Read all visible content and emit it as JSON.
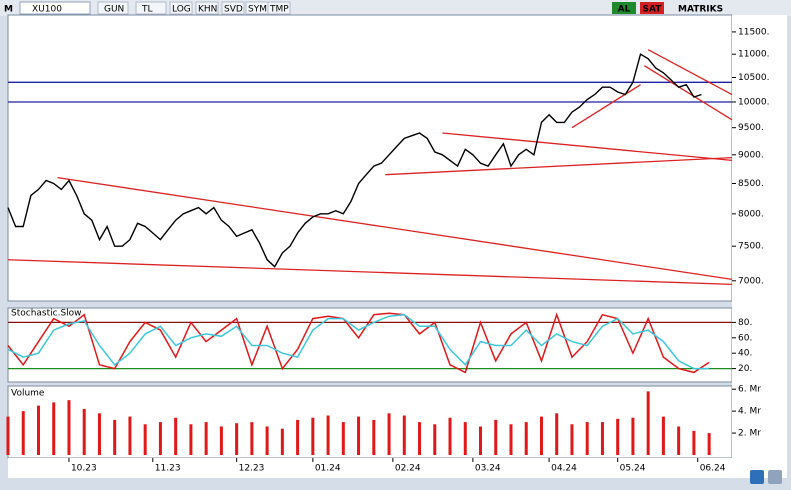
{
  "toolbar": {
    "mode": "M",
    "symbol": "XU100",
    "buttons": [
      "GUN",
      "TL",
      "LOG",
      "KHN",
      "SVD",
      "SYM",
      "TMP"
    ],
    "actions": [
      "AL",
      "SAT"
    ],
    "brand": "MATRIKS"
  },
  "chart_data": [
    {
      "type": "line",
      "log_y": true,
      "color": "#000000",
      "xlim": [
        0,
        190
      ],
      "ylim": [
        6900,
        11800
      ],
      "yticks": [
        {
          "value": 7000,
          "label": "7000."
        },
        {
          "value": 7500,
          "label": "7500."
        },
        {
          "value": 8000,
          "label": "8000."
        },
        {
          "value": 8500,
          "label": "8500."
        },
        {
          "value": 9000,
          "label": "9000."
        },
        {
          "value": 9500,
          "label": "9500."
        },
        {
          "value": 10000,
          "label": "10000."
        },
        {
          "value": 10500,
          "label": "10500."
        },
        {
          "value": 11000,
          "label": "11000."
        },
        {
          "value": 11500,
          "label": "11500."
        }
      ],
      "x": [
        0,
        2,
        4,
        6,
        8,
        10,
        12,
        14,
        16,
        18,
        20,
        22,
        24,
        26,
        28,
        30,
        32,
        34,
        36,
        38,
        40,
        42,
        44,
        46,
        48,
        50,
        52,
        54,
        56,
        58,
        60,
        62,
        64,
        66,
        68,
        70,
        72,
        74,
        76,
        78,
        80,
        82,
        84,
        86,
        88,
        90,
        92,
        94,
        96,
        98,
        100,
        102,
        104,
        106,
        108,
        110,
        112,
        114,
        116,
        118,
        120,
        122,
        124,
        126,
        128,
        130,
        132,
        134,
        136,
        138,
        140,
        142,
        144,
        146,
        148,
        150,
        152,
        154,
        156,
        158,
        160,
        162,
        164,
        166,
        168,
        170,
        172,
        174,
        176,
        178,
        180,
        182
      ],
      "values": [
        8100,
        7800,
        7800,
        8300,
        8400,
        8550,
        8500,
        8400,
        8550,
        8300,
        8000,
        7900,
        7600,
        7800,
        7500,
        7500,
        7600,
        7850,
        7800,
        7700,
        7600,
        7750,
        7900,
        8000,
        8050,
        8100,
        8000,
        8100,
        7900,
        7800,
        7650,
        7700,
        7750,
        7550,
        7300,
        7200,
        7400,
        7500,
        7700,
        7850,
        7950,
        8000,
        8000,
        8050,
        8000,
        8200,
        8500,
        8650,
        8800,
        8850,
        9000,
        9150,
        9300,
        9350,
        9400,
        9300,
        9050,
        9000,
        8900,
        8800,
        9100,
        9000,
        8850,
        8800,
        9000,
        9200,
        8800,
        9000,
        9100,
        9000,
        9600,
        9750,
        9600,
        9600,
        9800,
        9900,
        10050,
        10150,
        10300,
        10300,
        10200,
        10150,
        10400,
        11000,
        10900,
        10700,
        10600,
        10450,
        10300,
        10350,
        10100,
        10150
      ],
      "horizontal_lines": [
        {
          "value": 10400,
          "color": "#1f1fa6"
        },
        {
          "value": 10000,
          "color": "#1f1fa6"
        }
      ],
      "trendlines": [
        {
          "x": [
            13,
            190
          ],
          "y": [
            8600,
            7020
          ],
          "color": "#dd2222"
        },
        {
          "x": [
            0,
            190
          ],
          "y": [
            7300,
            6950
          ],
          "color": "#dd2222"
        },
        {
          "x": [
            114,
            190
          ],
          "y": [
            9400,
            8900
          ],
          "color": "#dd2222"
        },
        {
          "x": [
            99,
            190
          ],
          "y": [
            8650,
            8950
          ],
          "color": "#dd2222"
        },
        {
          "x": [
            148,
            166
          ],
          "y": [
            9500,
            10350
          ],
          "color": "#dd2222"
        },
        {
          "x": [
            168,
            190
          ],
          "y": [
            11100,
            10150
          ],
          "color": "#dd2222"
        },
        {
          "x": [
            167,
            190
          ],
          "y": [
            10750,
            9650
          ],
          "color": "#dd2222"
        }
      ]
    },
    {
      "type": "line",
      "title": "Stochastic.Slow",
      "xlim": [
        0,
        190
      ],
      "ylim": [
        0,
        100
      ],
      "yticks": [
        {
          "value": 20,
          "label": "20."
        },
        {
          "value": 40,
          "label": "40."
        },
        {
          "value": 60,
          "label": "60."
        },
        {
          "value": 80,
          "label": "80."
        }
      ],
      "ref_lines": [
        {
          "value": 80,
          "color": "#8b1010"
        },
        {
          "value": 20,
          "color": "#1c8a1c"
        }
      ],
      "x": [
        0,
        4,
        8,
        12,
        16,
        20,
        24,
        28,
        32,
        36,
        40,
        44,
        48,
        52,
        56,
        60,
        64,
        68,
        72,
        76,
        80,
        84,
        88,
        92,
        96,
        100,
        104,
        108,
        112,
        116,
        120,
        124,
        128,
        132,
        136,
        140,
        144,
        148,
        152,
        156,
        160,
        164,
        168,
        172,
        176,
        180,
        184
      ],
      "series": [
        {
          "color": "#e01818",
          "values": [
            50,
            25,
            55,
            85,
            75,
            90,
            25,
            20,
            55,
            80,
            70,
            35,
            80,
            55,
            70,
            85,
            25,
            75,
            20,
            45,
            85,
            88,
            85,
            60,
            90,
            92,
            90,
            65,
            80,
            25,
            15,
            80,
            30,
            65,
            80,
            30,
            90,
            35,
            55,
            90,
            85,
            40,
            85,
            35,
            20,
            15,
            28
          ]
        },
        {
          "color": "#3cc8dc",
          "values": [
            45,
            35,
            40,
            70,
            78,
            82,
            50,
            25,
            40,
            65,
            75,
            50,
            60,
            65,
            62,
            75,
            50,
            50,
            40,
            35,
            70,
            85,
            85,
            70,
            80,
            88,
            90,
            75,
            75,
            45,
            25,
            55,
            50,
            50,
            70,
            50,
            65,
            55,
            50,
            75,
            85,
            65,
            70,
            55,
            30,
            20,
            20
          ]
        }
      ]
    },
    {
      "type": "bar",
      "title": "Volume",
      "color": "#e01818",
      "xlim": [
        0,
        190
      ],
      "ylim": [
        0,
        6.2
      ],
      "yticks": [
        {
          "value": 2,
          "label": "2. Mr"
        },
        {
          "value": 4,
          "label": "4. Mr"
        },
        {
          "value": 6,
          "label": "6. Mr"
        }
      ],
      "xticks": [
        {
          "value": 16,
          "label": "10.23"
        },
        {
          "value": 38,
          "label": "11.23"
        },
        {
          "value": 60,
          "label": "12.23"
        },
        {
          "value": 80,
          "label": "01.24"
        },
        {
          "value": 101,
          "label": "02.24"
        },
        {
          "value": 122,
          "label": "03.24"
        },
        {
          "value": 142,
          "label": "04.24"
        },
        {
          "value": 160,
          "label": "05.24"
        },
        {
          "value": 181,
          "label": "06.24"
        }
      ],
      "x": [
        0,
        4,
        8,
        12,
        16,
        20,
        24,
        28,
        32,
        36,
        40,
        44,
        48,
        52,
        56,
        60,
        64,
        68,
        72,
        76,
        80,
        84,
        88,
        92,
        96,
        100,
        104,
        108,
        112,
        116,
        120,
        124,
        128,
        132,
        136,
        140,
        144,
        148,
        152,
        156,
        160,
        164,
        168,
        172,
        176,
        180,
        184
      ],
      "values": [
        3.5,
        4.0,
        4.5,
        4.8,
        5.0,
        4.2,
        3.8,
        3.2,
        3.5,
        2.8,
        3.0,
        3.4,
        2.8,
        3.0,
        2.6,
        2.9,
        3.0,
        2.6,
        2.4,
        3.2,
        3.4,
        3.6,
        3.0,
        3.5,
        3.2,
        3.8,
        3.6,
        3.0,
        2.8,
        3.4,
        3.0,
        2.6,
        3.2,
        2.8,
        3.0,
        3.5,
        3.8,
        2.8,
        3.0,
        3.0,
        3.3,
        3.4,
        5.8,
        3.5,
        2.6,
        2.2,
        2.0
      ]
    }
  ]
}
